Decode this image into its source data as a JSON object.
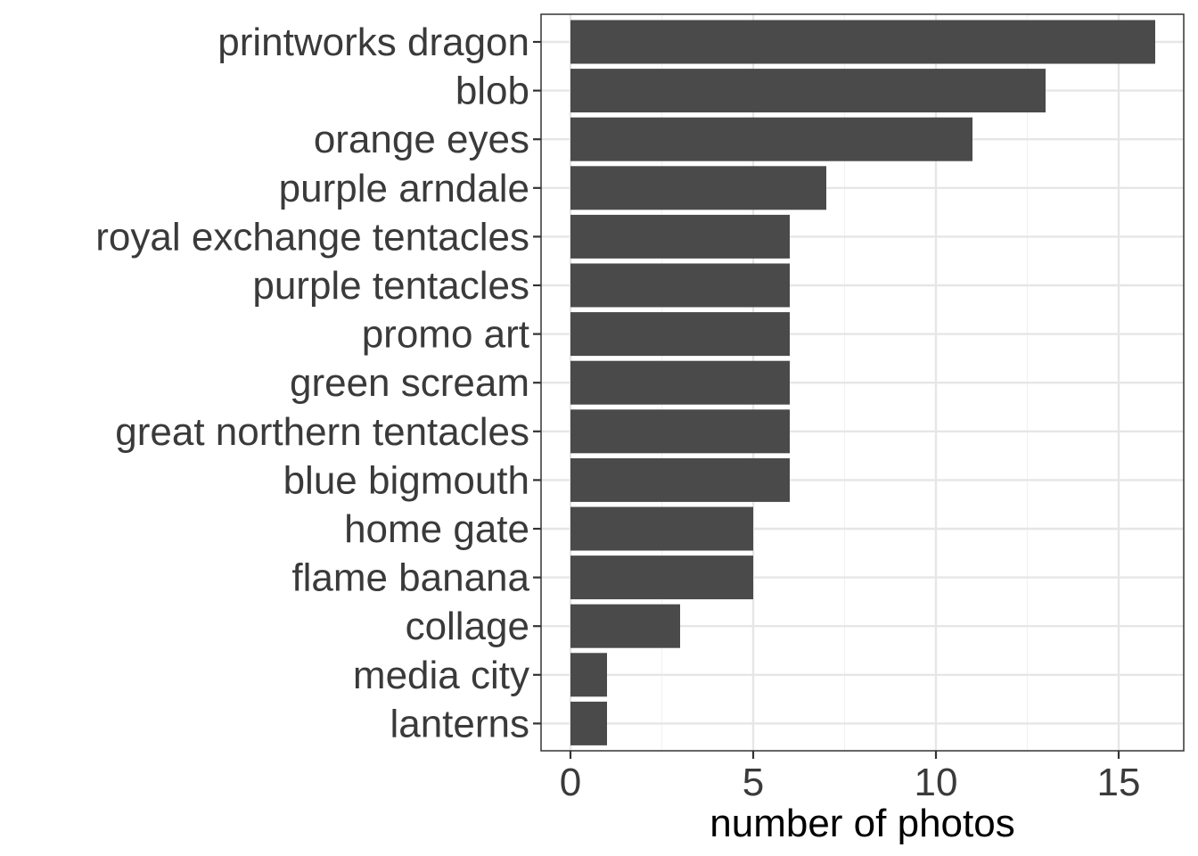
{
  "chart_data": {
    "type": "bar",
    "orientation": "horizontal",
    "categories": [
      "printworks dragon",
      "blob",
      "orange eyes",
      "purple arndale",
      "royal exchange tentacles",
      "purple tentacles",
      "promo art",
      "green scream",
      "great northern tentacles",
      "blue bigmouth",
      "home gate",
      "flame banana",
      "collage",
      "media city",
      "lanterns"
    ],
    "values": [
      16,
      13,
      11,
      7,
      6,
      6,
      6,
      6,
      6,
      6,
      5,
      5,
      3,
      1,
      1
    ],
    "xlabel": "number of photos",
    "ylabel": "",
    "title": "",
    "xlim": [
      -0.8,
      16.8
    ],
    "xticks": [
      0,
      5,
      10,
      15
    ],
    "xtick_labels": [
      "0",
      "5",
      "10",
      "15"
    ],
    "grid": true,
    "legend": "none",
    "colors": {
      "bar": "#4a4a4a",
      "panel_border": "#333333",
      "grid_major": "#e6e6e6",
      "grid_minor": "#f2f2f2",
      "tick": "#333333"
    }
  }
}
